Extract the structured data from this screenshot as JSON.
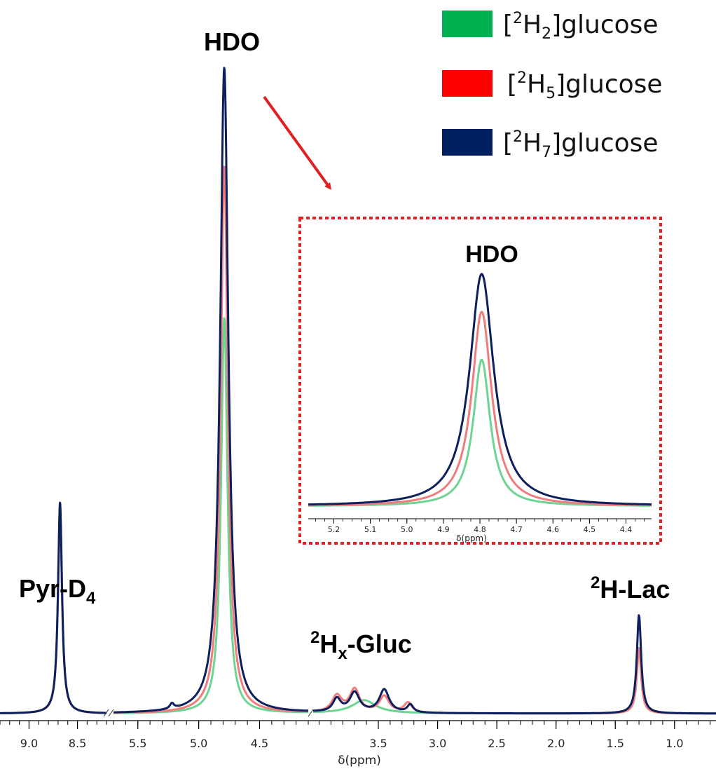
{
  "chart_data": [
    {
      "type": "line",
      "title": "",
      "xlabel": "δ(ppm)",
      "ylabel": "",
      "x_reversed": true,
      "x_segments": [
        {
          "range": [
            9.3,
            8.2
          ],
          "ticks": [
            9.0,
            8.5
          ],
          "tick_labels": [
            "9.0",
            "8.5"
          ]
        },
        {
          "range": [
            5.7,
            4.1
          ],
          "ticks": [
            5.5,
            5.0,
            4.5
          ],
          "tick_labels": [
            "5.5",
            "5.0",
            "4.5"
          ]
        },
        {
          "range": [
            4.05,
            0.65
          ],
          "ticks": [
            3.5,
            3.0,
            2.5,
            2.0,
            1.5,
            1.0
          ],
          "tick_labels": [
            "3.5",
            "3.0",
            "2.5",
            "2.0",
            "1.5",
            "1.0"
          ]
        }
      ],
      "axis_breaks": [
        "8.2-5.7",
        "4.1-4.05"
      ],
      "peak_labels": [
        {
          "main": "Pyr-D",
          "sub": "4",
          "ppm": 8.68
        },
        {
          "main": "HDO",
          "ppm": 4.79
        },
        {
          "sup": "2",
          "main": "H",
          "sub": "x",
          "rest": "-Gluc",
          "ppm": 3.6
        },
        {
          "sup": "2",
          "main": "H-Lac",
          "ppm": 1.3
        }
      ],
      "series": [
        {
          "name": "[2H2]glucose",
          "color": "#6dd492",
          "peaks": [
            {
              "ppm": 8.68,
              "height": 0.31,
              "width": 0.025
            },
            {
              "ppm": 4.79,
              "height": 0.6,
              "width": 0.032
            },
            {
              "ppm": 3.62,
              "height": 0.02,
              "width": 0.12
            },
            {
              "ppm": 1.3,
              "height": 0.1,
              "width": 0.022
            }
          ]
        },
        {
          "name": "[2H5]glucose",
          "color": "#f07d7d",
          "peaks": [
            {
              "ppm": 8.68,
              "height": 0.31,
              "width": 0.025
            },
            {
              "ppm": 4.79,
              "height": 0.83,
              "width": 0.035
            },
            {
              "ppm": 3.85,
              "height": 0.025,
              "width": 0.05
            },
            {
              "ppm": 3.7,
              "height": 0.035,
              "width": 0.05
            },
            {
              "ppm": 3.45,
              "height": 0.025,
              "width": 0.05
            },
            {
              "ppm": 3.25,
              "height": 0.015,
              "width": 0.04
            },
            {
              "ppm": 1.3,
              "height": 0.1,
              "width": 0.022
            }
          ]
        },
        {
          "name": "[2H7]glucose",
          "color": "#0d1f5c",
          "peaks": [
            {
              "ppm": 8.68,
              "height": 0.32,
              "width": 0.025
            },
            {
              "ppm": 4.79,
              "height": 0.98,
              "width": 0.04
            },
            {
              "ppm": 5.22,
              "height": 0.008,
              "width": 0.02
            },
            {
              "ppm": 3.85,
              "height": 0.02,
              "width": 0.04
            },
            {
              "ppm": 3.7,
              "height": 0.03,
              "width": 0.05
            },
            {
              "ppm": 3.45,
              "height": 0.035,
              "width": 0.05
            },
            {
              "ppm": 3.23,
              "height": 0.012,
              "width": 0.03
            },
            {
              "ppm": 1.3,
              "height": 0.15,
              "width": 0.022
            }
          ]
        }
      ],
      "legend": {
        "position": "top-right",
        "entries": [
          {
            "pre": "[",
            "sup": "2",
            "main": "H",
            "sub": "2",
            "post": "]glucose",
            "color": "#00b050"
          },
          {
            "pre": "[",
            "sup": "2",
            "main": "H",
            "sub": "5",
            "post": "]glucose",
            "color": "#ff0000"
          },
          {
            "pre": "[",
            "sup": "2",
            "main": "H",
            "sub": "7",
            "post": "]glucose",
            "color": "#002060"
          }
        ]
      }
    },
    {
      "type": "line",
      "title": "HDO",
      "xlabel": "δ(ppm)",
      "x_range": [
        5.27,
        4.33
      ],
      "ticks": [
        5.2,
        5.1,
        5.0,
        4.9,
        4.8,
        4.7,
        4.6,
        4.5,
        4.4
      ],
      "tick_labels": [
        "5.2",
        "5.1",
        "5.0",
        "4.9",
        "4.8",
        "4.7",
        "4.6",
        "4.5",
        "4.4"
      ],
      "series": [
        {
          "name": "[2H2]glucose",
          "color": "#6dd492",
          "peaks": [
            {
              "ppm": 4.795,
              "height": 0.58,
              "width": 0.028
            }
          ]
        },
        {
          "name": "[2H5]glucose",
          "color": "#f07d7d",
          "peaks": [
            {
              "ppm": 4.795,
              "height": 0.77,
              "width": 0.033
            }
          ]
        },
        {
          "name": "[2H7]glucose",
          "color": "#0d1f5c",
          "peaks": [
            {
              "ppm": 4.795,
              "height": 0.92,
              "width": 0.04
            }
          ]
        }
      ],
      "frame": "red-dotted"
    }
  ]
}
